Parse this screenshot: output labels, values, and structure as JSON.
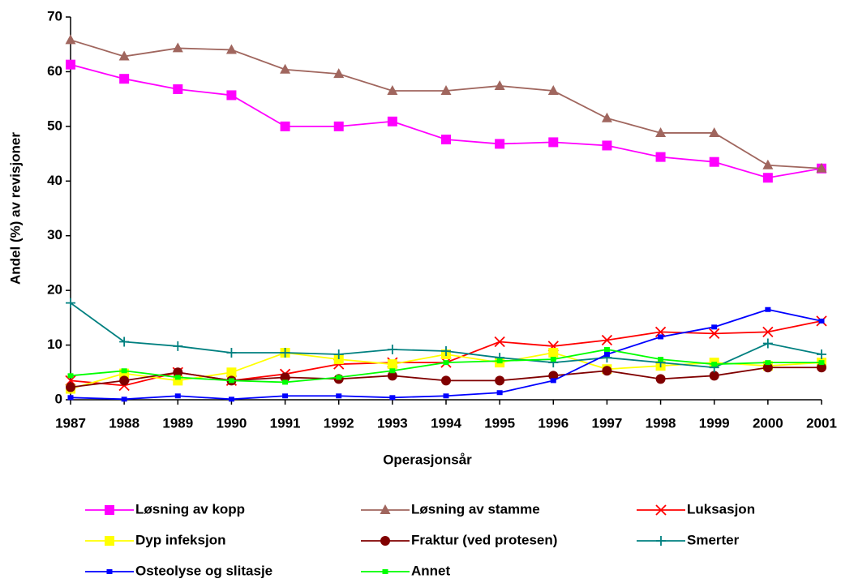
{
  "chart_data": {
    "type": "line",
    "x_label": "Operasjonsår",
    "y_label": "Andel (%) av revisjoner",
    "categories": [
      "1987",
      "1988",
      "1989",
      "1990",
      "1991",
      "1992",
      "1993",
      "1994",
      "1995",
      "1996",
      "1997",
      "1998",
      "1999",
      "2000",
      "2001"
    ],
    "ylim": [
      0,
      70
    ],
    "yticks": [
      0,
      10,
      20,
      30,
      40,
      50,
      60,
      70
    ],
    "grid": false,
    "series": [
      {
        "name": "Løsning av kopp",
        "color": "#ff00ff",
        "marker": "square",
        "values": [
          61.3,
          58.7,
          56.8,
          55.7,
          50.0,
          50.0,
          50.9,
          47.6,
          46.8,
          47.1,
          46.5,
          44.4,
          43.5,
          40.6,
          42.3
        ]
      },
      {
        "name": "Løsning av stamme",
        "color": "#a0665e",
        "marker": "triangle",
        "values": [
          65.8,
          62.8,
          64.3,
          64.0,
          60.4,
          59.6,
          56.5,
          56.5,
          57.4,
          56.5,
          51.5,
          48.8,
          48.8,
          42.9,
          42.3
        ]
      },
      {
        "name": "Luksasjon",
        "color": "#ff0000",
        "marker": "x",
        "values": [
          3.5,
          2.6,
          5.0,
          3.5,
          4.7,
          6.5,
          6.8,
          6.8,
          10.6,
          9.8,
          10.9,
          12.4,
          12.1,
          12.4,
          14.4
        ]
      },
      {
        "name": "Dyp infeksjon",
        "color": "#ffff00",
        "marker": "square",
        "values": [
          2.0,
          4.8,
          3.5,
          5.0,
          8.6,
          7.4,
          6.5,
          8.3,
          6.8,
          8.6,
          5.6,
          6.2,
          6.8,
          6.2,
          6.8
        ]
      },
      {
        "name": "Fraktur (ved protesen)",
        "color": "#800000",
        "marker": "circle",
        "values": [
          2.3,
          3.5,
          5.0,
          3.5,
          4.1,
          3.8,
          4.4,
          3.5,
          3.5,
          4.4,
          5.3,
          3.8,
          4.4,
          5.9,
          5.9
        ]
      },
      {
        "name": "Smerter",
        "color": "#008080",
        "marker": "plus",
        "values": [
          17.7,
          10.6,
          9.8,
          8.6,
          8.6,
          8.3,
          9.2,
          8.9,
          7.7,
          6.8,
          7.7,
          6.8,
          5.9,
          10.3,
          8.3
        ]
      },
      {
        "name": "Osteolyse og slitasje",
        "color": "#0000ff",
        "marker": "small-square",
        "values": [
          0.4,
          0.1,
          0.7,
          0.1,
          0.7,
          0.7,
          0.4,
          0.7,
          1.3,
          3.5,
          8.3,
          11.5,
          13.3,
          16.5,
          14.4
        ]
      },
      {
        "name": "Annet",
        "color": "#00ff00",
        "marker": "small-square",
        "values": [
          4.4,
          5.3,
          4.1,
          3.5,
          3.2,
          4.1,
          5.3,
          6.8,
          7.1,
          7.4,
          9.2,
          7.4,
          6.5,
          6.8,
          6.8
        ]
      }
    ]
  }
}
